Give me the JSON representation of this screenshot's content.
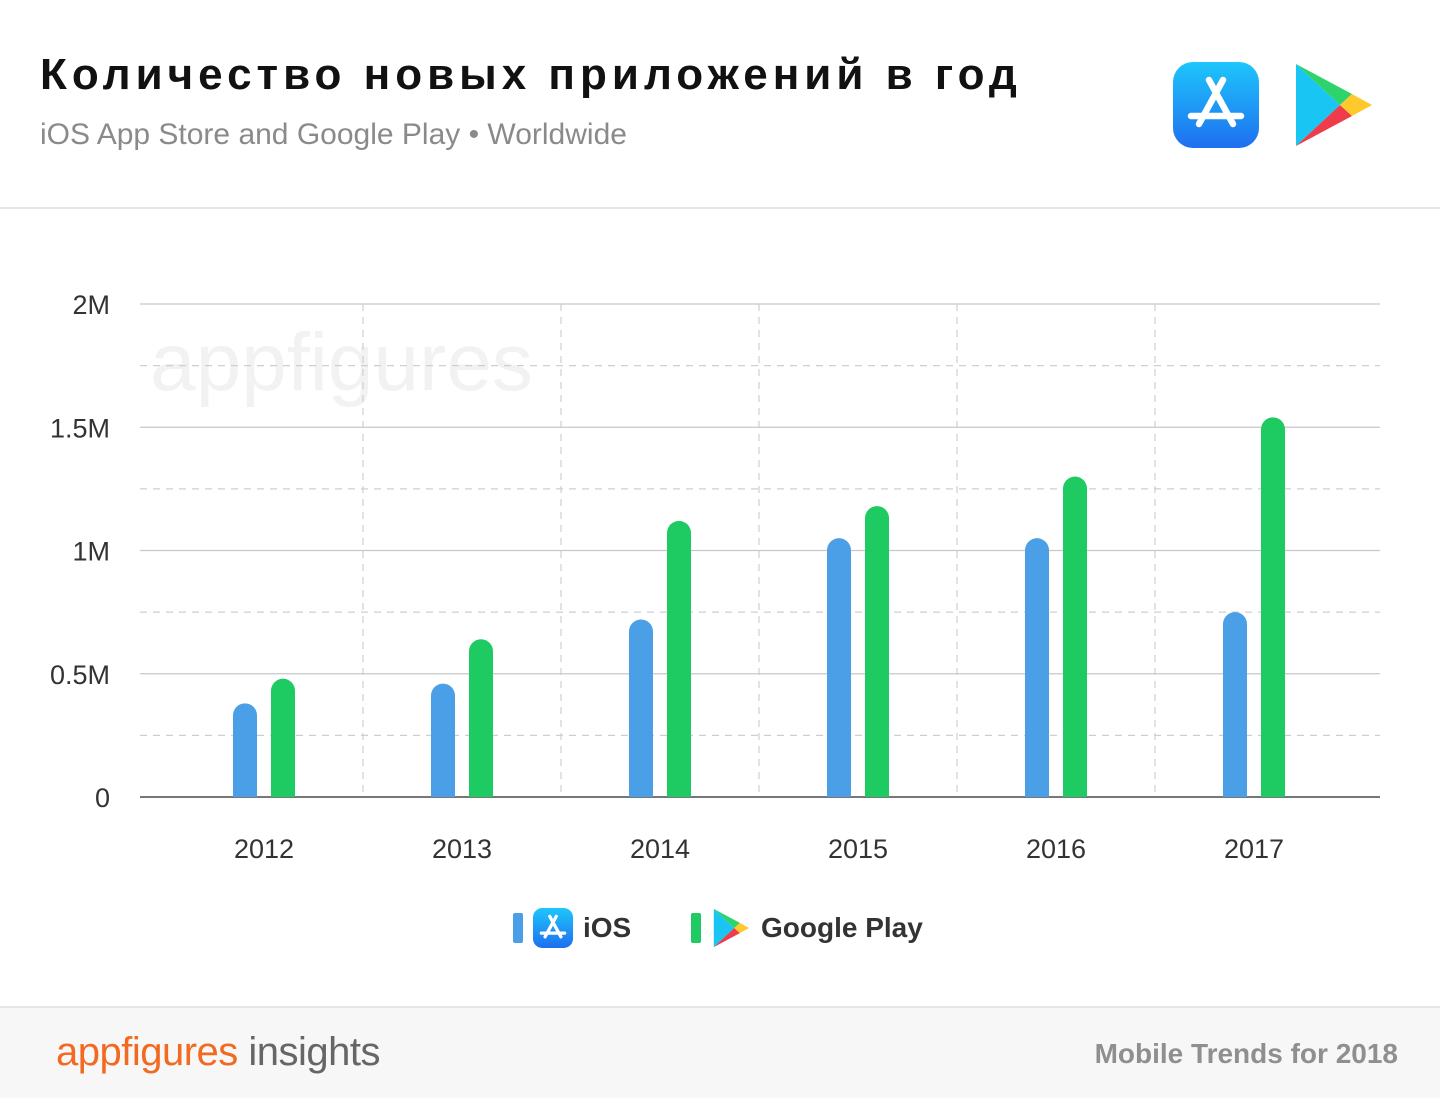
{
  "header": {
    "title": "Количество новых приложений в год",
    "subtitle": "iOS App Store and Google Play • Worldwide"
  },
  "watermark": "appfigures",
  "colors": {
    "ios": "#4a9fe6",
    "gplay": "#1ecb63",
    "brand": "#f26a21"
  },
  "chart_data": {
    "type": "bar",
    "categories": [
      "2012",
      "2013",
      "2014",
      "2015",
      "2016",
      "2017"
    ],
    "series": [
      {
        "name": "iOS",
        "values": [
          0.38,
          0.46,
          0.72,
          1.05,
          1.05,
          0.75
        ]
      },
      {
        "name": "Google Play",
        "values": [
          0.48,
          0.64,
          1.12,
          1.18,
          1.3,
          1.54
        ]
      }
    ],
    "ylim": [
      0,
      2
    ],
    "yticks": [
      0,
      0.5,
      1,
      1.5,
      2
    ],
    "ytick_labels": [
      "0",
      "0.5M",
      "1M",
      "1.5M",
      "2M"
    ],
    "grid": true,
    "legend_position": "bottom-center"
  },
  "legend": {
    "ios_label": "iOS",
    "gplay_label": "Google Play"
  },
  "footer": {
    "brand_main": "appfigures",
    "brand_sub": " insights",
    "note": "Mobile Trends for 2018"
  }
}
